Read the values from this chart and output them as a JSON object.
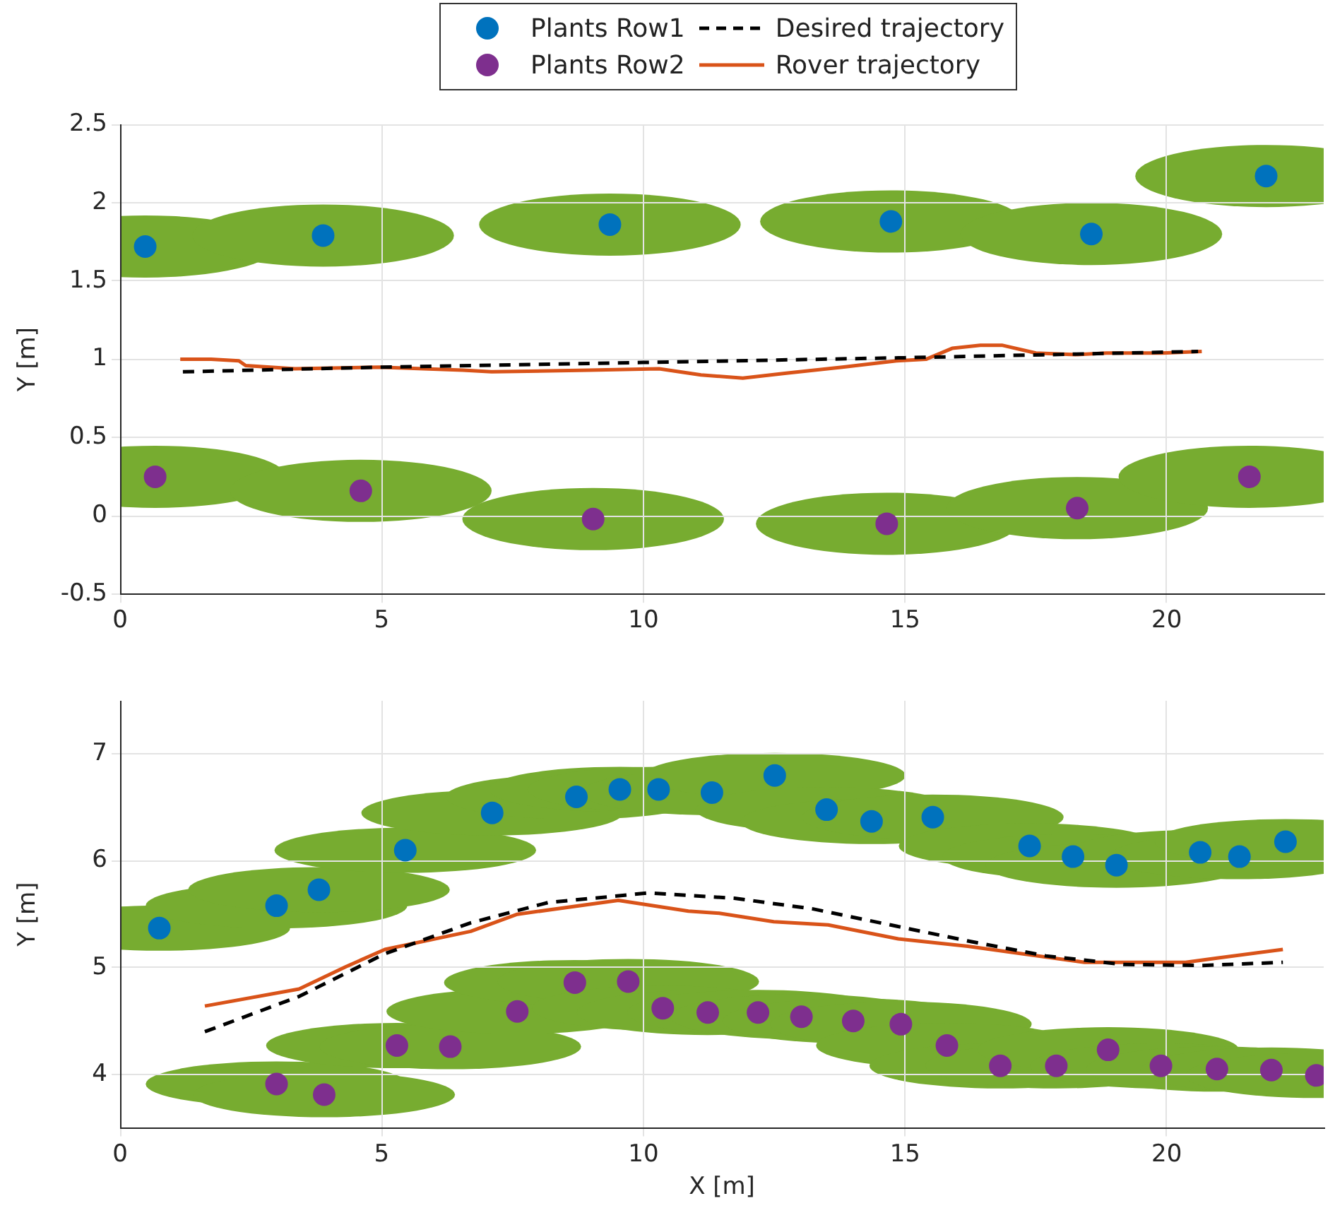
{
  "chart_data": [
    {
      "type": "scatter",
      "ylabel": "Y [m]",
      "xlim": [
        0,
        23
      ],
      "xticks": [
        0,
        5,
        10,
        15,
        20
      ],
      "ylim": [
        -0.5,
        2.5
      ],
      "yticks": [
        -0.5,
        0,
        0.5,
        1,
        1.5,
        2,
        2.5
      ],
      "grid": true,
      "legend": "top",
      "series": [
        {
          "name": "Plants Row1",
          "type": "scatter",
          "marker": "circle",
          "color": "#0072bd",
          "x": [
            0.48,
            3.88,
            9.36,
            14.73,
            18.56,
            21.9
          ],
          "values": [
            1.72,
            1.79,
            1.86,
            1.88,
            1.8,
            2.17
          ]
        },
        {
          "name": "Plants Row2",
          "type": "scatter",
          "marker": "circle",
          "color": "#7e2f8e",
          "x": [
            0.67,
            4.6,
            9.04,
            14.65,
            18.29,
            21.58
          ],
          "values": [
            0.25,
            0.16,
            -0.02,
            -0.05,
            0.05,
            0.25
          ]
        },
        {
          "name": "Desired trajectory",
          "type": "line",
          "marker": "none",
          "line_style": "dashed",
          "color": "#000000",
          "x": [
            1.2,
            5,
            10,
            15,
            20.6
          ],
          "values": [
            0.92,
            0.95,
            0.98,
            1.01,
            1.05
          ]
        },
        {
          "name": "Rover trajectory",
          "type": "line",
          "marker": "none",
          "line_style": "solid",
          "color": "#d95319",
          "x": [
            1.15,
            1.74,
            2.27,
            2.4,
            3.34,
            4.95,
            6.55,
            7.1,
            8.96,
            10.3,
            11.1,
            11.9,
            12.7,
            13.8,
            14.84,
            15.4,
            15.9,
            16.44,
            16.85,
            17.5,
            18.26,
            18.85,
            19.92,
            20.67
          ],
          "values": [
            1.0,
            1.0,
            0.99,
            0.96,
            0.94,
            0.95,
            0.93,
            0.92,
            0.93,
            0.94,
            0.9,
            0.88,
            0.91,
            0.95,
            0.99,
            1.0,
            1.07,
            1.09,
            1.09,
            1.04,
            1.03,
            1.04,
            1.04,
            1.05
          ]
        }
      ]
    },
    {
      "type": "scatter",
      "xlabel": "X [m]",
      "ylabel": "Y [m]",
      "xlim": [
        0,
        23
      ],
      "xticks": [
        0,
        5,
        10,
        15,
        20
      ],
      "ylim": [
        3.5,
        7.5
      ],
      "yticks": [
        4,
        5,
        6,
        7
      ],
      "grid": true,
      "series": [
        {
          "type": "scatter",
          "marker": "circle",
          "color": "#0072bd",
          "x": [
            0.75,
            2.99,
            3.8,
            5.45,
            7.11,
            8.72,
            9.55,
            10.29,
            11.31,
            12.51,
            13.5,
            14.36,
            15.53,
            17.38,
            18.21,
            19.04,
            20.64,
            21.39,
            22.27
          ],
          "values": [
            5.37,
            5.58,
            5.73,
            6.1,
            6.45,
            6.6,
            6.67,
            6.67,
            6.64,
            6.8,
            6.48,
            6.37,
            6.41,
            6.14,
            6.04,
            5.96,
            6.08,
            6.04,
            6.18
          ]
        },
        {
          "type": "scatter",
          "marker": "circle",
          "color": "#7e2f8e",
          "x": [
            2.99,
            3.9,
            5.29,
            6.31,
            7.59,
            8.69,
            9.71,
            10.37,
            11.23,
            12.19,
            13.02,
            14.01,
            14.92,
            15.8,
            16.82,
            17.89,
            18.88,
            19.89,
            20.96,
            22.0,
            22.86
          ],
          "values": [
            3.91,
            3.81,
            4.27,
            4.26,
            4.59,
            4.86,
            4.87,
            4.62,
            4.58,
            4.58,
            4.54,
            4.5,
            4.47,
            4.27,
            4.08,
            4.08,
            4.23,
            4.08,
            4.05,
            4.04,
            3.99
          ]
        },
        {
          "type": "line",
          "marker": "none",
          "line_style": "dashed",
          "color": "#000000",
          "x": [
            1.62,
            3.42,
            5.06,
            6.7,
            8.18,
            10.1,
            11.74,
            13.24,
            14.72,
            16.2,
            17.69,
            19.17,
            20.67,
            22.22
          ],
          "values": [
            4.4,
            4.73,
            5.13,
            5.42,
            5.61,
            5.7,
            5.65,
            5.55,
            5.4,
            5.25,
            5.11,
            5.03,
            5.02,
            5.05
          ]
        },
        {
          "type": "line",
          "marker": "none",
          "line_style": "solid",
          "color": "#d95319",
          "x": [
            1.62,
            3.42,
            4.32,
            5.06,
            6.7,
            7.59,
            9.52,
            10.86,
            11.45,
            12.49,
            13.53,
            14.87,
            16.2,
            18.43,
            20.36,
            20.96,
            22.22
          ],
          "values": [
            4.64,
            4.8,
            5.01,
            5.17,
            5.34,
            5.5,
            5.63,
            5.53,
            5.51,
            5.43,
            5.4,
            5.27,
            5.2,
            5.05,
            5.05,
            5.09,
            5.17
          ]
        }
      ]
    }
  ]
}
